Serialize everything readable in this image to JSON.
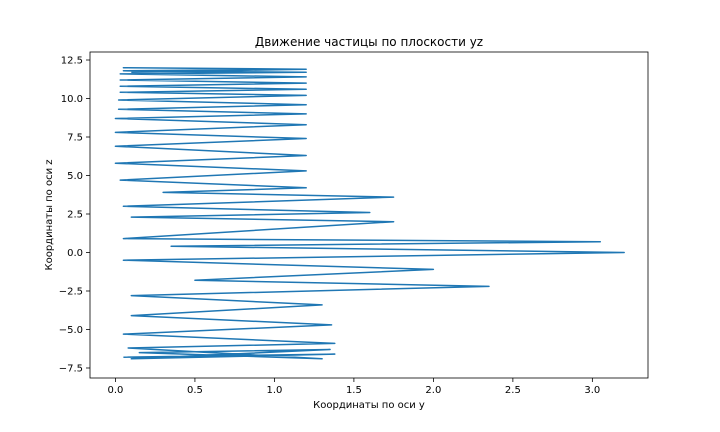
{
  "chart_data": {
    "type": "line",
    "title": "Движение частицы по плоскости yz",
    "x_label": "Координаты по оси y",
    "y_label": "Координаты по оси z",
    "xlim": [
      -0.16,
      3.35
    ],
    "ylim": [
      -8.15,
      13.02
    ],
    "xticks": [
      {
        "value": 0,
        "label": "0.0"
      },
      {
        "value": 0.5,
        "label": "0.5"
      },
      {
        "value": 1,
        "label": "1.0"
      },
      {
        "value": 1.5,
        "label": "1.5"
      },
      {
        "value": 2,
        "label": "2.0"
      },
      {
        "value": 2.5,
        "label": "2.5"
      },
      {
        "value": 3,
        "label": "3.0"
      }
    ],
    "yticks": [
      {
        "value": -7.5,
        "label": "−7.5"
      },
      {
        "value": -5,
        "label": "−5.0"
      },
      {
        "value": -2.5,
        "label": "−2.5"
      },
      {
        "value": 0,
        "label": "0.0"
      },
      {
        "value": 2.5,
        "label": "2.5"
      },
      {
        "value": 5,
        "label": "5.0"
      },
      {
        "value": 7.5,
        "label": "7.5"
      },
      {
        "value": 10,
        "label": "10.0"
      },
      {
        "value": 12.5,
        "label": "12.5"
      }
    ],
    "series": [
      {
        "color": "#1f77b4",
        "x": [
          0.05,
          1.38,
          0.1,
          1.35,
          0.15,
          1.3,
          0.08,
          1.38,
          0.05,
          1.36,
          0.1,
          1.3,
          0.1,
          2.35,
          0.5,
          2.0,
          0.05,
          3.2,
          0.35,
          3.05,
          0.05,
          1.75,
          0.1,
          1.6,
          0.05,
          1.75,
          0.3,
          1.2,
          0.03,
          1.2,
          0.0,
          1.2,
          0.0,
          1.2,
          0.0,
          1.2,
          0.0,
          1.2,
          0.02,
          1.2,
          0.02,
          1.2,
          0.03,
          1.2,
          0.03,
          1.2,
          0.03,
          1.2,
          0.03,
          1.2,
          0.05,
          1.2,
          0.05,
          1.2,
          0.1
        ],
        "values": [
          -6.8,
          -6.6,
          -6.9,
          -6.3,
          -6.5,
          -6.9,
          -6.2,
          -5.9,
          -5.3,
          -4.7,
          -4.1,
          -3.4,
          -2.8,
          -2.2,
          -1.8,
          -1.1,
          -0.5,
          0.0,
          0.4,
          0.7,
          0.9,
          2.0,
          2.3,
          2.6,
          3.0,
          3.6,
          3.9,
          4.2,
          4.7,
          5.3,
          5.8,
          6.3,
          6.9,
          7.4,
          7.8,
          8.3,
          8.7,
          9.0,
          9.3,
          9.6,
          9.9,
          10.2,
          10.4,
          10.6,
          10.8,
          11.0,
          11.2,
          11.4,
          11.6,
          11.7,
          11.8,
          11.9,
          12.0,
          11.9,
          11.7
        ]
      }
    ]
  }
}
